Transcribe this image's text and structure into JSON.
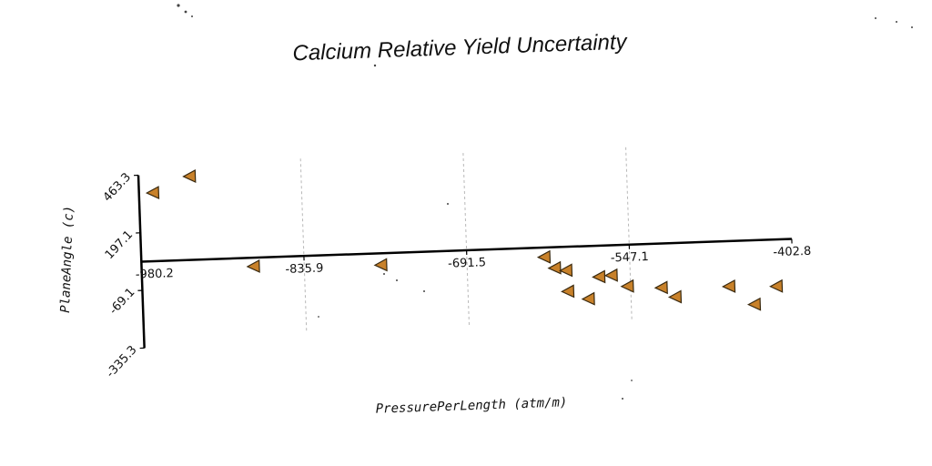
{
  "chart_data": {
    "type": "scatter",
    "title": "Calcium Relative Yield Uncertainty",
    "xlabel": "PressurePerLength (atm/m)",
    "ylabel": "PlaneAngle (c)",
    "xlim": [
      -980.2,
      -402.8
    ],
    "ylim": [
      -335.3,
      463.3
    ],
    "x_ticks": [
      {
        "value": -980.2,
        "label": "-980.2"
      },
      {
        "value": -835.9,
        "label": "-835.9"
      },
      {
        "value": -691.5,
        "label": "-691.5"
      },
      {
        "value": -547.1,
        "label": "-547.1"
      },
      {
        "value": -402.8,
        "label": "-402.8"
      }
    ],
    "y_ticks": [
      {
        "value": -335.3,
        "label": "-335.3"
      },
      {
        "value": -69.1,
        "label": "-69.1"
      },
      {
        "value": 197.1,
        "label": "197.1"
      },
      {
        "value": 463.3,
        "label": "463.3"
      }
    ],
    "grid": "x-major-dashed",
    "marker": "triangle-left",
    "marker_color": "#c8812a",
    "points": [
      {
        "x": -968,
        "y": 380
      },
      {
        "x": -935,
        "y": 450
      },
      {
        "x": -881,
        "y": 24
      },
      {
        "x": -768,
        "y": 10
      },
      {
        "x": -623,
        "y": 20
      },
      {
        "x": -614,
        "y": -32
      },
      {
        "x": -604,
        "y": -45
      },
      {
        "x": -603,
        "y": -142
      },
      {
        "x": -585,
        "y": -180
      },
      {
        "x": -575,
        "y": -80
      },
      {
        "x": -564,
        "y": -75
      },
      {
        "x": -550,
        "y": -128
      },
      {
        "x": -520,
        "y": -140
      },
      {
        "x": -508,
        "y": -185
      },
      {
        "x": -460,
        "y": -145
      },
      {
        "x": -438,
        "y": -232
      },
      {
        "x": -418,
        "y": -152
      }
    ]
  }
}
